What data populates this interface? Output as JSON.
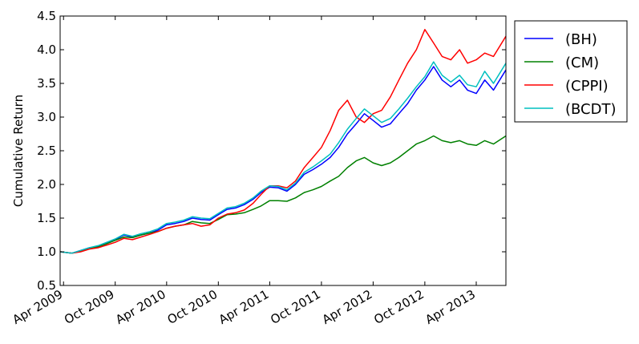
{
  "chart_data": {
    "type": "line",
    "title": "",
    "xlabel": "",
    "ylabel": "Cumulative Return",
    "ylim": [
      0.5,
      4.5
    ],
    "xlim": [
      "2009-03-20",
      "2013-07-15"
    ],
    "yticks": [
      "0.5",
      "1.0",
      "1.5",
      "2.0",
      "2.5",
      "3.0",
      "3.5",
      "4.0",
      "4.5"
    ],
    "xticks": [
      {
        "date": "2009-04-01",
        "label": "Apr 2009"
      },
      {
        "date": "2009-10-01",
        "label": "Oct 2009"
      },
      {
        "date": "2010-04-01",
        "label": "Apr 2010"
      },
      {
        "date": "2010-10-01",
        "label": "Oct 2010"
      },
      {
        "date": "2011-04-01",
        "label": "Apr 2011"
      },
      {
        "date": "2011-10-01",
        "label": "Oct 2011"
      },
      {
        "date": "2012-04-01",
        "label": "Apr 2012"
      },
      {
        "date": "2012-10-01",
        "label": "Oct 2012"
      },
      {
        "date": "2013-04-01",
        "label": "Apr 2013"
      }
    ],
    "grid": false,
    "legend_position": "outside-top-right",
    "x": [
      "2009-03-20",
      "2009-05-01",
      "2009-06-01",
      "2009-07-01",
      "2009-08-01",
      "2009-09-01",
      "2009-10-01",
      "2009-11-01",
      "2009-12-01",
      "2010-01-01",
      "2010-02-01",
      "2010-03-01",
      "2010-04-01",
      "2010-05-01",
      "2010-06-01",
      "2010-07-01",
      "2010-08-01",
      "2010-09-01",
      "2010-10-01",
      "2010-11-01",
      "2010-12-01",
      "2011-01-01",
      "2011-02-01",
      "2011-03-01",
      "2011-04-01",
      "2011-05-01",
      "2011-06-01",
      "2011-07-01",
      "2011-08-01",
      "2011-09-01",
      "2011-10-01",
      "2011-11-01",
      "2011-12-01",
      "2012-01-01",
      "2012-02-01",
      "2012-03-01",
      "2012-04-01",
      "2012-05-01",
      "2012-06-01",
      "2012-07-01",
      "2012-08-01",
      "2012-09-01",
      "2012-10-01",
      "2012-11-01",
      "2012-12-01",
      "2013-01-01",
      "2013-02-01",
      "2013-03-01",
      "2013-04-01",
      "2013-05-01",
      "2013-06-01",
      "2013-07-15"
    ],
    "series": [
      {
        "name": "(BH)",
        "color": "#0000ff",
        "values": [
          1.0,
          0.98,
          1.02,
          1.06,
          1.08,
          1.13,
          1.18,
          1.25,
          1.22,
          1.25,
          1.28,
          1.32,
          1.4,
          1.42,
          1.45,
          1.5,
          1.48,
          1.47,
          1.55,
          1.63,
          1.65,
          1.7,
          1.78,
          1.88,
          1.96,
          1.95,
          1.9,
          2.0,
          2.15,
          2.22,
          2.3,
          2.4,
          2.55,
          2.75,
          2.9,
          3.05,
          2.95,
          2.85,
          2.9,
          3.05,
          3.2,
          3.4,
          3.55,
          3.75,
          3.55,
          3.45,
          3.55,
          3.4,
          3.35,
          3.55,
          3.4,
          3.7
        ]
      },
      {
        "name": "(CM)",
        "color": "#008000",
        "values": [
          1.0,
          0.98,
          1.01,
          1.05,
          1.07,
          1.12,
          1.17,
          1.22,
          1.21,
          1.25,
          1.28,
          1.3,
          1.35,
          1.38,
          1.4,
          1.45,
          1.43,
          1.42,
          1.48,
          1.55,
          1.56,
          1.58,
          1.63,
          1.68,
          1.76,
          1.76,
          1.75,
          1.8,
          1.88,
          1.92,
          1.97,
          2.05,
          2.12,
          2.25,
          2.35,
          2.4,
          2.32,
          2.28,
          2.32,
          2.4,
          2.5,
          2.6,
          2.65,
          2.72,
          2.65,
          2.62,
          2.65,
          2.6,
          2.58,
          2.65,
          2.6,
          2.72
        ]
      },
      {
        "name": "(CPPI)",
        "color": "#ff0000",
        "values": [
          1.0,
          0.98,
          1.0,
          1.04,
          1.06,
          1.1,
          1.14,
          1.2,
          1.18,
          1.22,
          1.26,
          1.3,
          1.35,
          1.38,
          1.4,
          1.42,
          1.38,
          1.4,
          1.5,
          1.56,
          1.58,
          1.62,
          1.72,
          1.85,
          1.98,
          1.98,
          1.95,
          2.05,
          2.25,
          2.4,
          2.55,
          2.8,
          3.1,
          3.25,
          3.0,
          2.92,
          3.05,
          3.1,
          3.3,
          3.55,
          3.8,
          4.0,
          4.3,
          4.1,
          3.9,
          3.85,
          4.0,
          3.8,
          3.85,
          3.95,
          3.9,
          4.2
        ]
      },
      {
        "name": "(BCDT)",
        "color": "#00bfbf",
        "values": [
          1.0,
          0.98,
          1.02,
          1.06,
          1.09,
          1.14,
          1.19,
          1.26,
          1.23,
          1.27,
          1.3,
          1.34,
          1.42,
          1.44,
          1.47,
          1.52,
          1.5,
          1.49,
          1.57,
          1.65,
          1.67,
          1.72,
          1.8,
          1.9,
          1.98,
          1.97,
          1.92,
          2.02,
          2.18,
          2.26,
          2.35,
          2.45,
          2.62,
          2.82,
          2.98,
          3.12,
          3.02,
          2.92,
          2.98,
          3.12,
          3.28,
          3.45,
          3.6,
          3.82,
          3.62,
          3.52,
          3.62,
          3.48,
          3.45,
          3.68,
          3.5,
          3.8
        ]
      }
    ]
  }
}
